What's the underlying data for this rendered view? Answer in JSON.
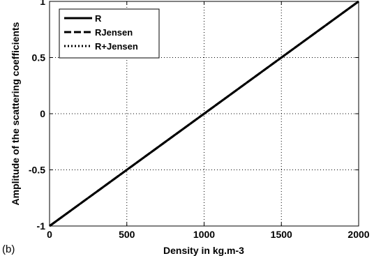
{
  "chart_data": {
    "type": "line",
    "panel_label": "(b)",
    "xlabel": "Density in kg.m-3",
    "ylabel": "Amplitude of the scattering coefficients",
    "xlim": [
      0,
      2000
    ],
    "ylim": [
      -1,
      1
    ],
    "x_ticks": [
      "0",
      "500",
      "1000",
      "1500",
      "2000"
    ],
    "y_ticks": [
      "-1",
      "-0.5",
      "0",
      "0.5",
      "1"
    ],
    "grid": true,
    "legend_position": "top-left",
    "series": [
      {
        "name": "R",
        "style": "solid",
        "color": "#000000",
        "x": [
          0,
          2000
        ],
        "y": [
          -1,
          1
        ]
      },
      {
        "name": "RJensen",
        "style": "dashed",
        "color": "#000000",
        "x": [
          0,
          2000
        ],
        "y": [
          -1,
          1
        ]
      },
      {
        "name": "R+Jensen",
        "style": "dotted",
        "color": "#000000",
        "x": [
          0,
          2000
        ],
        "y": [
          -1,
          1
        ]
      }
    ]
  }
}
